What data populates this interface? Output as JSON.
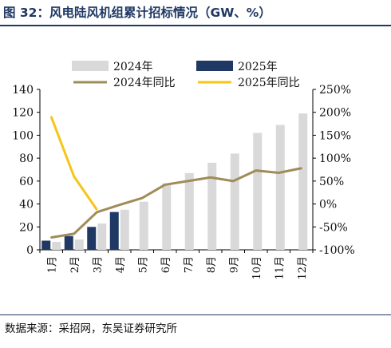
{
  "header": {
    "title": "图 32：风电陆风机组累计招标情况（GW、%）"
  },
  "footer": {
    "source": "数据来源：采招网，东吴证券研究所"
  },
  "chart_data": {
    "type": "bar",
    "categories": [
      "1月",
      "2月",
      "3月",
      "4月",
      "5月",
      "6月",
      "7月",
      "8月",
      "9月",
      "10月",
      "11月",
      "12月"
    ],
    "series": [
      {
        "name": "2024年",
        "kind": "bar",
        "axis": "left",
        "color": "#d9d9d9",
        "values": [
          7,
          9,
          23,
          35,
          42,
          58,
          67,
          76,
          84,
          102,
          109,
          119
        ]
      },
      {
        "name": "2025年",
        "kind": "bar",
        "axis": "left",
        "color": "#1f3864",
        "values": [
          8,
          12,
          20,
          33,
          null,
          null,
          null,
          null,
          null,
          null,
          null,
          null
        ]
      },
      {
        "name": "2024年同比",
        "kind": "line",
        "axis": "right",
        "color": "#a08c58",
        "values": [
          -73,
          -65,
          -18,
          -2,
          13,
          42,
          50,
          58,
          50,
          73,
          68,
          78
        ]
      },
      {
        "name": "2025年同比",
        "kind": "line",
        "axis": "right",
        "color": "#f5c518",
        "values": [
          190,
          60,
          -12,
          null,
          null,
          null,
          null,
          null,
          null,
          null,
          null,
          null
        ]
      }
    ],
    "y_left": {
      "min": 0,
      "max": 140,
      "ticks": [
        0,
        20,
        40,
        60,
        80,
        100,
        120,
        140
      ]
    },
    "y_right": {
      "min": -100,
      "max": 250,
      "ticks": [
        "-100%",
        "-50%",
        "0%",
        "50%",
        "100%",
        "150%",
        "200%",
        "250%"
      ],
      "tick_values": [
        -100,
        -50,
        0,
        50,
        100,
        150,
        200,
        250
      ]
    },
    "legend_position": "top",
    "grid": false
  }
}
